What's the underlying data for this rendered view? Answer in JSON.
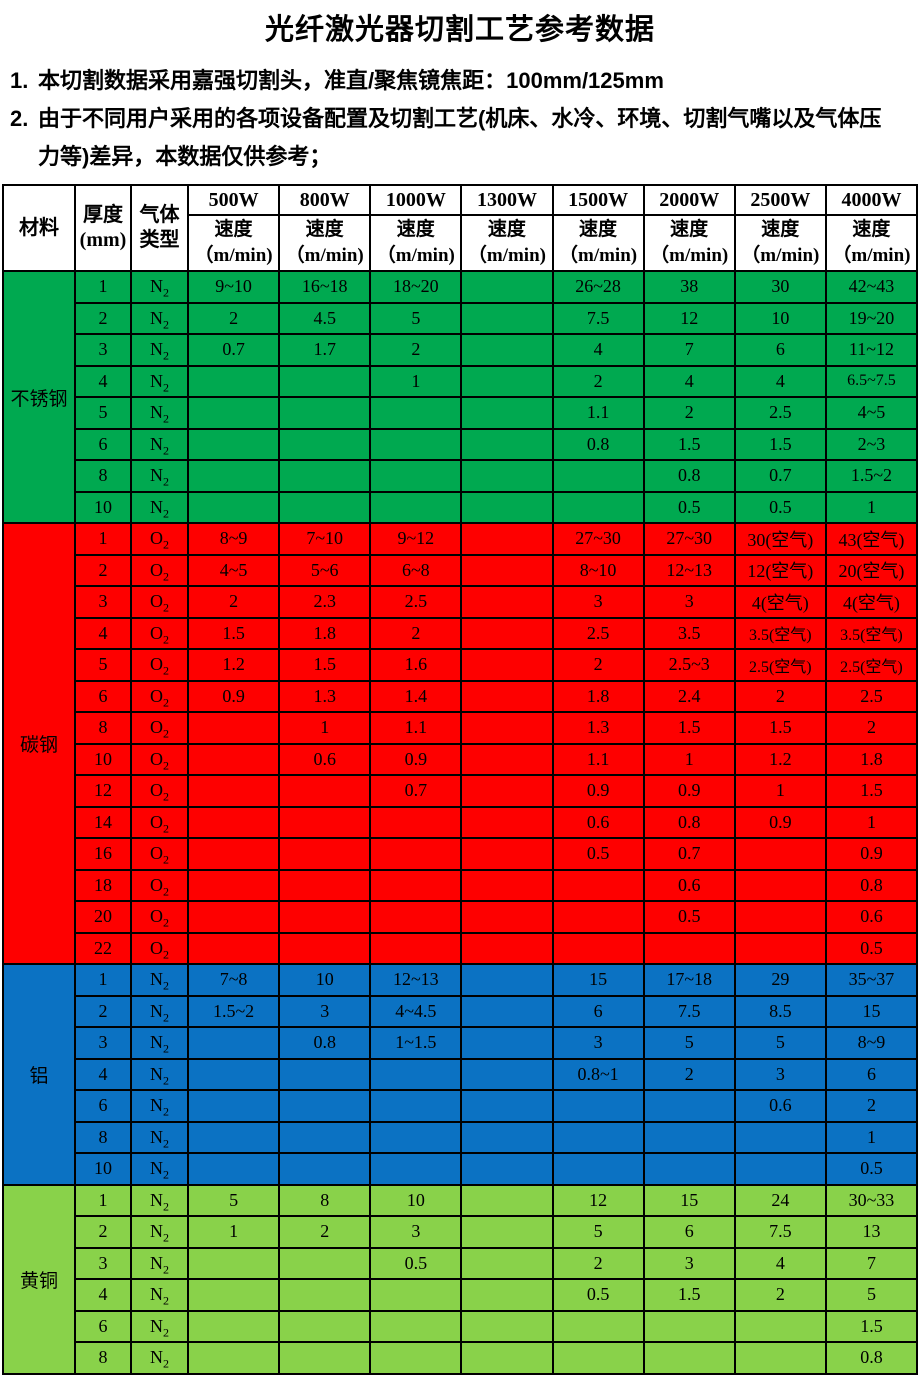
{
  "title": "光纤激光器切割工艺参考数据",
  "notes": [
    {
      "num": "1.",
      "lines": [
        "本切割数据采用嘉强切割头，准直/聚焦镜焦距：100mm/125mm"
      ]
    },
    {
      "num": "2.",
      "lines": [
        "由于不同用户采用的各项设备配置及切割工艺(机床、水冷、环境、切割气嘴以及气体压",
        "力等)差异，本数据仅供参考；"
      ]
    }
  ],
  "table": {
    "corner_header": "材料",
    "thickness_header": [
      "厚度",
      "(mm)"
    ],
    "gas_header": [
      "气体",
      "类型"
    ],
    "power_columns": [
      "500W",
      "800W",
      "1000W",
      "1300W",
      "1500W",
      "2000W",
      "2500W",
      "4000W"
    ],
    "speed_label": [
      "速度",
      "（m/min)"
    ],
    "sections": [
      {
        "material": "不锈钢",
        "color": "#00A950",
        "rows": [
          {
            "t": "1",
            "g": "N2",
            "v": [
              "9~10",
              "16~18",
              "18~20",
              "",
              "26~28",
              "38",
              "30",
              "42~43"
            ]
          },
          {
            "t": "2",
            "g": "N2",
            "v": [
              "2",
              "4.5",
              "5",
              "",
              "7.5",
              "12",
              "10",
              "19~20"
            ]
          },
          {
            "t": "3",
            "g": "N2",
            "v": [
              "0.7",
              "1.7",
              "2",
              "",
              "4",
              "7",
              "6",
              "11~12"
            ]
          },
          {
            "t": "4",
            "g": "N2",
            "v": [
              "",
              "",
              "1",
              "",
              "2",
              "4",
              "4",
              "6.5~7.5"
            ]
          },
          {
            "t": "5",
            "g": "N2",
            "v": [
              "",
              "",
              "",
              "",
              "1.1",
              "2",
              "2.5",
              "4~5"
            ]
          },
          {
            "t": "6",
            "g": "N2",
            "v": [
              "",
              "",
              "",
              "",
              "0.8",
              "1.5",
              "1.5",
              "2~3"
            ]
          },
          {
            "t": "8",
            "g": "N2",
            "v": [
              "",
              "",
              "",
              "",
              "",
              "0.8",
              "0.7",
              "1.5~2"
            ]
          },
          {
            "t": "10",
            "g": "N2",
            "v": [
              "",
              "",
              "",
              "",
              "",
              "0.5",
              "0.5",
              "1"
            ]
          }
        ]
      },
      {
        "material": "碳钢",
        "color": "#FE0000",
        "rows": [
          {
            "t": "1",
            "g": "O2",
            "v": [
              "8~9",
              "7~10",
              "9~12",
              "",
              "27~30",
              "27~30",
              "30(空气)",
              "43(空气)"
            ]
          },
          {
            "t": "2",
            "g": "O2",
            "v": [
              "4~5",
              "5~6",
              "6~8",
              "",
              "8~10",
              "12~13",
              "12(空气)",
              "20(空气)"
            ]
          },
          {
            "t": "3",
            "g": "O2",
            "v": [
              "2",
              "2.3",
              "2.5",
              "",
              "3",
              "3",
              "4(空气)",
              "4(空气)"
            ]
          },
          {
            "t": "4",
            "g": "O2",
            "v": [
              "1.5",
              "1.8",
              "2",
              "",
              "2.5",
              "3.5",
              "3.5(空气)",
              "3.5(空气)"
            ]
          },
          {
            "t": "5",
            "g": "O2",
            "v": [
              "1.2",
              "1.5",
              "1.6",
              "",
              "2",
              "2.5~3",
              "2.5(空气)",
              "2.5(空气)"
            ]
          },
          {
            "t": "6",
            "g": "O2",
            "v": [
              "0.9",
              "1.3",
              "1.4",
              "",
              "1.8",
              "2.4",
              "2",
              "2.5"
            ]
          },
          {
            "t": "8",
            "g": "O2",
            "v": [
              "",
              "1",
              "1.1",
              "",
              "1.3",
              "1.5",
              "1.5",
              "2"
            ]
          },
          {
            "t": "10",
            "g": "O2",
            "v": [
              "",
              "0.6",
              "0.9",
              "",
              "1.1",
              "1",
              "1.2",
              "1.8"
            ]
          },
          {
            "t": "12",
            "g": "O2",
            "v": [
              "",
              "",
              "0.7",
              "",
              "0.9",
              "0.9",
              "1",
              "1.5"
            ]
          },
          {
            "t": "14",
            "g": "O2",
            "v": [
              "",
              "",
              "",
              "",
              "0.6",
              "0.8",
              "0.9",
              "1"
            ]
          },
          {
            "t": "16",
            "g": "O2",
            "v": [
              "",
              "",
              "",
              "",
              "0.5",
              "0.7",
              "",
              "0.9"
            ]
          },
          {
            "t": "18",
            "g": "O2",
            "v": [
              "",
              "",
              "",
              "",
              "",
              "0.6",
              "",
              "0.8"
            ]
          },
          {
            "t": "20",
            "g": "O2",
            "v": [
              "",
              "",
              "",
              "",
              "",
              "0.5",
              "",
              "0.6"
            ]
          },
          {
            "t": "22",
            "g": "O2",
            "v": [
              "",
              "",
              "",
              "",
              "",
              "",
              "",
              "0.5"
            ]
          }
        ]
      },
      {
        "material": "铝",
        "color": "#0B72C3",
        "rows": [
          {
            "t": "1",
            "g": "N2",
            "v": [
              "7~8",
              "10",
              "12~13",
              "",
              "15",
              "17~18",
              "29",
              "35~37"
            ]
          },
          {
            "t": "2",
            "g": "N2",
            "v": [
              "1.5~2",
              "3",
              "4~4.5",
              "",
              "6",
              "7.5",
              "8.5",
              "15"
            ]
          },
          {
            "t": "3",
            "g": "N2",
            "v": [
              "",
              "0.8",
              "1~1.5",
              "",
              "3",
              "5",
              "5",
              "8~9"
            ]
          },
          {
            "t": "4",
            "g": "N2",
            "v": [
              "",
              "",
              "",
              "",
              "0.8~1",
              "2",
              "3",
              "6"
            ]
          },
          {
            "t": "6",
            "g": "N2",
            "v": [
              "",
              "",
              "",
              "",
              "",
              "",
              "0.6",
              "2"
            ]
          },
          {
            "t": "8",
            "g": "N2",
            "v": [
              "",
              "",
              "",
              "",
              "",
              "",
              "",
              "1"
            ]
          },
          {
            "t": "10",
            "g": "N2",
            "v": [
              "",
              "",
              "",
              "",
              "",
              "",
              "",
              "0.5"
            ]
          }
        ]
      },
      {
        "material": "黄铜",
        "color": "#89D24A",
        "rows": [
          {
            "t": "1",
            "g": "N2",
            "v": [
              "5",
              "8",
              "10",
              "",
              "12",
              "15",
              "24",
              "30~33"
            ]
          },
          {
            "t": "2",
            "g": "N2",
            "v": [
              "1",
              "2",
              "3",
              "",
              "5",
              "6",
              "7.5",
              "13"
            ]
          },
          {
            "t": "3",
            "g": "N2",
            "v": [
              "",
              "",
              "0.5",
              "",
              "2",
              "3",
              "4",
              "7"
            ]
          },
          {
            "t": "4",
            "g": "N2",
            "v": [
              "",
              "",
              "",
              "",
              "0.5",
              "1.5",
              "2",
              "5"
            ]
          },
          {
            "t": "6",
            "g": "N2",
            "v": [
              "",
              "",
              "",
              "",
              "",
              "",
              "",
              "1.5"
            ]
          },
          {
            "t": "8",
            "g": "N2",
            "v": [
              "",
              "",
              "",
              "",
              "",
              "",
              "",
              "0.8"
            ]
          }
        ]
      }
    ]
  },
  "colors": {
    "stainless_green": "#00A950",
    "carbon_red": "#FE0000",
    "aluminum_blue": "#0B72C3",
    "brass_green": "#89D24A",
    "border_black": "#000000",
    "text_black": "#000000"
  }
}
